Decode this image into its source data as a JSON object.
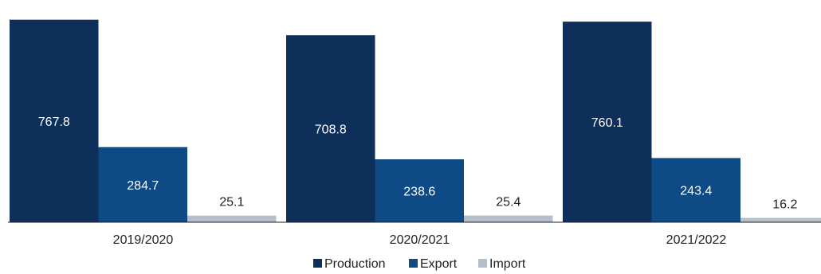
{
  "chart_data": {
    "type": "bar",
    "title": "",
    "xlabel": "",
    "ylabel": "",
    "categories": [
      "2019/2020",
      "2020/2021",
      "2021/2022"
    ],
    "series": [
      {
        "name": "Production",
        "values": [
          767.8,
          708.8,
          760.1
        ],
        "color": "#0d2f5a",
        "label_color": "#ffffff"
      },
      {
        "name": "Export",
        "values": [
          284.7,
          238.6,
          243.4
        ],
        "color": "#0e4a86",
        "label_color": "#ffffff"
      },
      {
        "name": "Import",
        "values": [
          25.1,
          25.4,
          16.2
        ],
        "color": "#b4bfc9",
        "label_color": "#222222"
      }
    ],
    "value_labels": [
      [
        "767.8",
        "708.8",
        "760.1"
      ],
      [
        "284.7",
        "238.6",
        "243.4"
      ],
      [
        "25.1",
        "25.4",
        "16.2"
      ]
    ],
    "ylim": [
      0,
      800
    ],
    "grid": false,
    "legend_position": "bottom"
  }
}
